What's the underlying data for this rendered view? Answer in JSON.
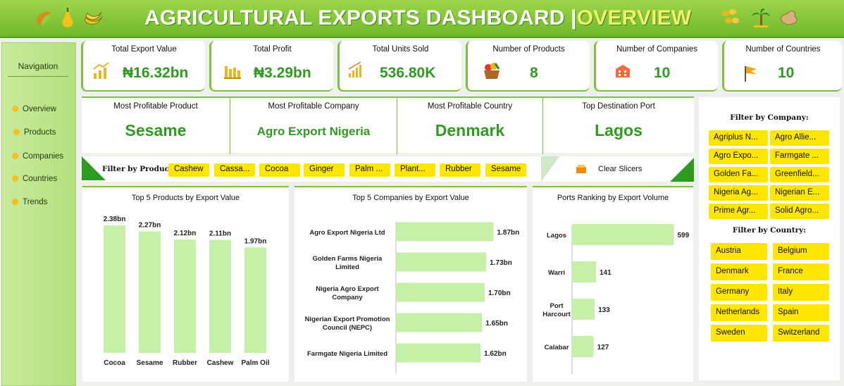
{
  "header": {
    "title_main": "AGRICULTURAL EXPORTS DASHBOARD |",
    "title_highlight": "OVERVIEW",
    "left_icons": [
      "cashew-icon",
      "pear-icon",
      "banana-icon"
    ],
    "right_icons": [
      "seeds-icon",
      "palm-tree-icon",
      "ginger-icon"
    ]
  },
  "navigation": {
    "title": "Navigation",
    "items": [
      "Overview",
      "Products",
      "Companies",
      "Countries",
      "Trends"
    ]
  },
  "kpis": [
    {
      "label": "Total Export Value",
      "value": "₦16.32bn",
      "icon": "growth-chart-icon"
    },
    {
      "label": "Total Profit",
      "value": "₦3.29bn",
      "icon": "bar-chart-icon"
    },
    {
      "label": "Total Units Sold",
      "value": "536.80K",
      "icon": "rising-bars-icon"
    },
    {
      "label": "Number of Products",
      "value": "8",
      "icon": "produce-basket-icon"
    },
    {
      "label": "Number of Companies",
      "value": "10",
      "icon": "building-icon"
    },
    {
      "label": "Number of Countries",
      "value": "10",
      "icon": "flag-icon"
    }
  ],
  "most_profitable": [
    {
      "label": "Most Profitable Product",
      "value": "Sesame"
    },
    {
      "label": "Most Profitable Company",
      "value": "Agro Export Nigeria"
    },
    {
      "label": "Most Profitable Country",
      "value": "Denmark"
    },
    {
      "label": "Top Destination Port",
      "value": "Lagos"
    }
  ],
  "product_filter": {
    "title": "Filter by Product:",
    "items": [
      "Cashew",
      "Cassa...",
      "Cocoa",
      "Ginger",
      "Palm ...",
      "Plant...",
      "Rubber",
      "Sesame"
    ]
  },
  "clear_slicers": {
    "label": "Clear Slicers",
    "icon": "eraser-icon"
  },
  "company_filter": {
    "title": "Filter by Company:",
    "items": [
      "Agriplus N...",
      "Agro Allie...",
      "Agro Expo...",
      "Farmgate ...",
      "Golden Fa...",
      "Greenfield...",
      "Nigeria Ag...",
      "Nigerian E...",
      "Prime Agr...",
      "Solid Agro..."
    ]
  },
  "country_filter": {
    "title": "Filter by Country:",
    "items": [
      "Austria",
      "Belgium",
      "Denmark",
      "France",
      "Germany",
      "Italy",
      "Netherlands",
      "Spain",
      "Sweden",
      "Switzerland"
    ]
  },
  "colors": {
    "accent_green": "#2f9b21",
    "bar_green": "#c6f0a8",
    "chip_yellow": "#ffe600",
    "banner_green": "#7cc043"
  },
  "chart_data": [
    {
      "type": "bar",
      "title": "Top 5 Products by Export Value",
      "categories": [
        "Cocoa",
        "Sesame",
        "Rubber",
        "Cashew",
        "Palm Oil"
      ],
      "values": [
        2.38,
        2.27,
        2.12,
        2.11,
        1.97
      ],
      "labels": [
        "2.38bn",
        "2.27bn",
        "2.12bn",
        "2.11bn",
        "1.97bn"
      ],
      "ylim": [
        0,
        2.5
      ],
      "grid": false
    },
    {
      "type": "bar",
      "orientation": "horizontal",
      "title": "Top 5 Companies by Export Value",
      "categories": [
        [
          "Agro Export Nigeria Ltd"
        ],
        [
          "Golden Farms Nigeria",
          "Limited"
        ],
        [
          "Nigeria Agro Export",
          "Company"
        ],
        [
          "Nigerian Export Promotion",
          "Council (NEPC)"
        ],
        [
          "Farmgate Nigeria Limited"
        ]
      ],
      "values": [
        1.87,
        1.73,
        1.7,
        1.65,
        1.62
      ],
      "labels": [
        "1.87bn",
        "1.73bn",
        "1.70bn",
        "1.65bn",
        "1.62bn"
      ],
      "xlim": [
        0,
        2.2
      ],
      "grid": false
    },
    {
      "type": "bar",
      "orientation": "horizontal",
      "title": "Ports Ranking by Export Volume",
      "categories": [
        [
          "Lagos"
        ],
        [
          "Warri"
        ],
        [
          "Port",
          "Harcourt"
        ],
        [
          "Calabar"
        ]
      ],
      "values": [
        599,
        141,
        133,
        127
      ],
      "labels": [
        "599",
        "141",
        "133",
        "127"
      ],
      "xlim": [
        0,
        680
      ],
      "grid": false
    }
  ]
}
